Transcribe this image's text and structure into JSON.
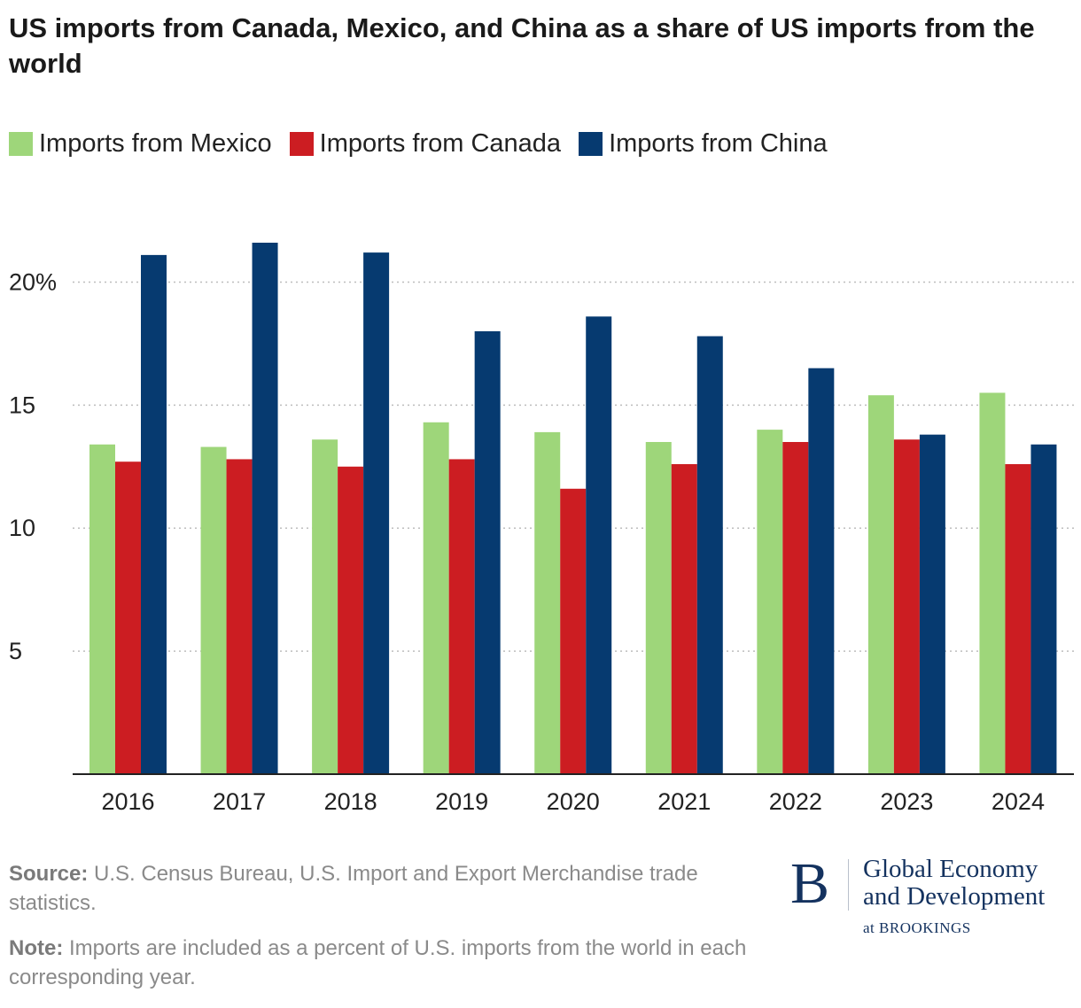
{
  "title": "US imports from Canada, Mexico, and China as a share of US imports from the world",
  "legend": [
    {
      "label": "Imports from Mexico",
      "color": "#9ed67a"
    },
    {
      "label": "Imports from Canada",
      "color": "#cc1d22"
    },
    {
      "label": "Imports from China",
      "color": "#063a70"
    }
  ],
  "chart_data": {
    "type": "bar",
    "title": "US imports from Canada, Mexico, and China as a share of US imports from the world",
    "xlabel": "",
    "ylabel": "",
    "categories": [
      "2016",
      "2017",
      "2018",
      "2019",
      "2020",
      "2021",
      "2022",
      "2023",
      "2024"
    ],
    "series": [
      {
        "name": "Imports from Mexico",
        "color": "#9ed67a",
        "values": [
          13.4,
          13.3,
          13.6,
          14.3,
          13.9,
          13.5,
          14.0,
          15.4,
          15.5
        ]
      },
      {
        "name": "Imports from Canada",
        "color": "#cc1d22",
        "values": [
          12.7,
          12.8,
          12.5,
          12.8,
          11.6,
          12.6,
          13.5,
          13.6,
          12.6
        ]
      },
      {
        "name": "Imports from China",
        "color": "#063a70",
        "values": [
          21.1,
          21.6,
          21.2,
          18.0,
          18.6,
          17.8,
          16.5,
          13.8,
          13.4
        ]
      }
    ],
    "ylim": [
      0,
      22.5
    ],
    "yticks": [
      5,
      10,
      15,
      20
    ],
    "ytick_labels": [
      "5",
      "10",
      "15",
      "20%"
    ],
    "grid": true,
    "legend_position": "top-left"
  },
  "footer": {
    "source_label": "Source:",
    "source_text": "U.S. Census Bureau, U.S. Import and Export Merchandise trade statistics.",
    "note_label": "Note:",
    "note_text": "Imports are included as a percent of U.S. imports from the world in each corresponding year."
  },
  "logo": {
    "mark": "B",
    "line1": "Global Economy",
    "line2": "and Development",
    "sub": "at BROOKINGS"
  }
}
